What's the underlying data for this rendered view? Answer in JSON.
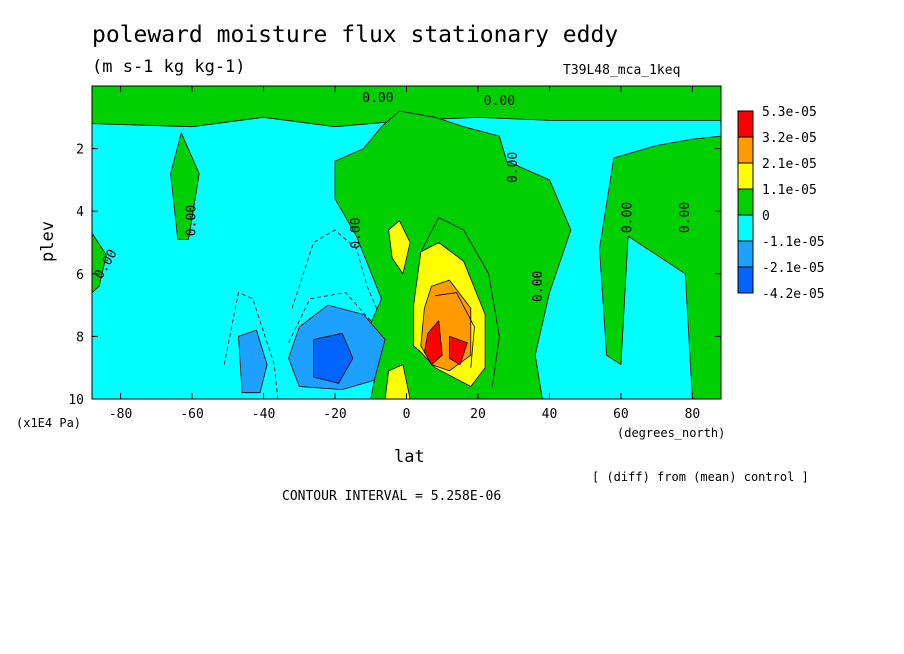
{
  "chart_data": {
    "type": "contour",
    "title": "poleward moisture flux stationary eddy",
    "units": "(m s-1 kg kg-1)",
    "run_label": "T39L48_mca_1keq",
    "comparison_note": "[ (diff) from (mean) control ]",
    "contour_interval_text": "CONTOUR INTERVAL = 5.258E-06",
    "xlabel": "lat",
    "xunit": "(degrees_north)",
    "ylabel": "plev",
    "yunit": "(x1E4 Pa)",
    "xlim": [
      -88,
      88
    ],
    "ylim": [
      10,
      0
    ],
    "xticks": [
      -80,
      -60,
      -40,
      -20,
      0,
      20,
      40,
      60,
      80
    ],
    "yticks": [
      2,
      4,
      6,
      8,
      10
    ],
    "contour_label": "0.00",
    "legend": {
      "placement": "right",
      "levels": [
        "5.3e-05",
        "3.2e-05",
        "2.1e-05",
        "1.1e-05",
        "0",
        "-1.1e-05",
        "-2.1e-05",
        "-4.2e-05"
      ],
      "colors": [
        "#ff0000",
        "#ff9b00",
        "#ffff00",
        "#00d000",
        "#00ffff",
        "#1ea0ff",
        "#0064ff"
      ]
    },
    "background_color": "#00ffff",
    "regions": [
      {
        "name": "positive-band-top",
        "level": "0-1.1e-05",
        "color": "#00d000",
        "pts": [
          [
            -88,
            0
          ],
          [
            88,
            0
          ],
          [
            88,
            1.1
          ],
          [
            60,
            1.1
          ],
          [
            40,
            1.1
          ],
          [
            20,
            1.0
          ],
          [
            0,
            1.1
          ],
          [
            -20,
            1.3
          ],
          [
            -40,
            1.0
          ],
          [
            -60,
            1.3
          ],
          [
            -88,
            1.2
          ]
        ]
      },
      {
        "name": "positive-core-column",
        "level": "0-1.1e-05",
        "color": "#00d000",
        "pts": [
          [
            -2,
            0.8
          ],
          [
            8,
            1.0
          ],
          [
            16,
            1.3
          ],
          [
            26,
            1.6
          ],
          [
            28,
            2.4
          ],
          [
            40,
            3.0
          ],
          [
            46,
            4.6
          ],
          [
            40,
            6.6
          ],
          [
            36,
            8.6
          ],
          [
            38,
            10
          ],
          [
            -10,
            10
          ],
          [
            -8,
            8.8
          ],
          [
            -12,
            8.1
          ],
          [
            -7,
            6.8
          ],
          [
            -14,
            4.8
          ],
          [
            -20,
            3.6
          ],
          [
            -20,
            2.4
          ],
          [
            -12,
            2.0
          ],
          [
            -7,
            1.3
          ]
        ]
      },
      {
        "name": "positive-column-east",
        "level": "0-1.1e-05",
        "color": "#00d000",
        "pts": [
          [
            58,
            2.3
          ],
          [
            70,
            1.9
          ],
          [
            80,
            1.7
          ],
          [
            88,
            1.6
          ],
          [
            88,
            10
          ],
          [
            80,
            10
          ],
          [
            78,
            6.0
          ],
          [
            62,
            4.8
          ],
          [
            60,
            8.9
          ],
          [
            56,
            8.6
          ],
          [
            54,
            5.2
          ]
        ]
      },
      {
        "name": "positive-strip-west",
        "level": "0-1.1e-05",
        "color": "#00d000",
        "pts": [
          [
            -66,
            2.8
          ],
          [
            -63,
            1.5
          ],
          [
            -58,
            2.8
          ],
          [
            -61,
            4.9
          ],
          [
            -64,
            4.9
          ]
        ]
      },
      {
        "name": "positive-edge-west",
        "level": "0-1.1e-05",
        "color": "#00d000",
        "pts": [
          [
            -88,
            4.7
          ],
          [
            -84,
            5.4
          ],
          [
            -86,
            6.4
          ],
          [
            -88,
            6.6
          ]
        ]
      },
      {
        "name": "negative-patch-south",
        "level": "-1.1e-05--2.1e-05",
        "color": "#1ea0ff",
        "pts": [
          [
            -30,
            7.7
          ],
          [
            -22,
            7.0
          ],
          [
            -12,
            7.3
          ],
          [
            -6,
            8.1
          ],
          [
            -9,
            9.4
          ],
          [
            -18,
            9.7
          ],
          [
            -30,
            9.6
          ],
          [
            -33,
            8.7
          ]
        ]
      },
      {
        "name": "negative-patch-west",
        "level": "-1.1e-05--2.1e-05",
        "color": "#1ea0ff",
        "pts": [
          [
            -47,
            8.0
          ],
          [
            -42,
            7.8
          ],
          [
            -39,
            8.9
          ],
          [
            -41,
            9.8
          ],
          [
            -46,
            9.8
          ]
        ]
      },
      {
        "name": "negative-core-south",
        "level": "-2.1e-05--4.2e-05",
        "color": "#0064ff",
        "pts": [
          [
            -26,
            8.1
          ],
          [
            -18,
            7.9
          ],
          [
            -15,
            8.7
          ],
          [
            -19,
            9.5
          ],
          [
            -26,
            9.3
          ]
        ]
      },
      {
        "name": "positive-tongue-equator",
        "level": "1.1e-05-2.1e-05",
        "color": "#ffff00",
        "pts": [
          [
            4,
            5.3
          ],
          [
            9,
            5.0
          ],
          [
            16,
            5.6
          ],
          [
            22,
            7.3
          ],
          [
            22,
            9.0
          ],
          [
            18,
            9.6
          ],
          [
            8,
            9.0
          ],
          [
            4,
            8.5
          ],
          [
            2,
            8.3
          ],
          [
            2,
            7.0
          ]
        ]
      },
      {
        "name": "positive-upper-lobe",
        "level": "1.1e-05-2.1e-05",
        "color": "#ffff00",
        "pts": [
          [
            -5,
            4.6
          ],
          [
            -2,
            4.3
          ],
          [
            1,
            5.0
          ],
          [
            -1,
            6.0
          ],
          [
            -4,
            5.5
          ]
        ]
      },
      {
        "name": "positive-lower-lobe",
        "level": "1.1e-05-2.1e-05",
        "color": "#ffff00",
        "pts": [
          [
            -5,
            9.1
          ],
          [
            -1,
            8.9
          ],
          [
            1,
            10
          ],
          [
            -6,
            10
          ]
        ]
      },
      {
        "name": "positive-strong",
        "level": "2.1e-05-3.2e-05",
        "color": "#ff9b00",
        "pts": [
          [
            7,
            6.4
          ],
          [
            12,
            6.2
          ],
          [
            18,
            7.1
          ],
          [
            18,
            8.6
          ],
          [
            12,
            9.1
          ],
          [
            7,
            8.9
          ],
          [
            4,
            8.3
          ],
          [
            5,
            7.1
          ]
        ]
      },
      {
        "name": "positive-max-west",
        "level": "3.2e-05-5.3e-05",
        "color": "#ff0000",
        "pts": [
          [
            6,
            7.9
          ],
          [
            9,
            7.5
          ],
          [
            10,
            8.6
          ],
          [
            7,
            8.9
          ],
          [
            5,
            8.5
          ]
        ]
      },
      {
        "name": "positive-max-east",
        "level": "3.2e-05-5.3e-05",
        "color": "#ff0000",
        "pts": [
          [
            12,
            8.0
          ],
          [
            17,
            8.2
          ],
          [
            15,
            8.9
          ],
          [
            12,
            8.7
          ]
        ]
      }
    ],
    "contour_lines": [
      {
        "style": "dashed",
        "pts": [
          [
            -51,
            8.9
          ],
          [
            -47,
            6.6
          ],
          [
            -43,
            6.8
          ],
          [
            -37,
            8.9
          ],
          [
            -36,
            10
          ]
        ]
      },
      {
        "style": "dashed",
        "pts": [
          [
            -32,
            7.1
          ],
          [
            -26,
            5.0
          ],
          [
            -20,
            4.6
          ],
          [
            -14,
            5.2
          ],
          [
            -11,
            6.4
          ],
          [
            -8,
            7.2
          ]
        ]
      },
      {
        "style": "dashed",
        "pts": [
          [
            -33,
            8.2
          ],
          [
            -27,
            6.8
          ],
          [
            -17,
            6.6
          ],
          [
            -10,
            7.5
          ]
        ]
      },
      {
        "style": "solid",
        "pts": [
          [
            4,
            5.3
          ],
          [
            9,
            4.2
          ],
          [
            16,
            4.6
          ],
          [
            23,
            6.0
          ],
          [
            26,
            8.0
          ],
          [
            24,
            9.6
          ]
        ]
      },
      {
        "style": "solid",
        "pts": [
          [
            8,
            6.7
          ],
          [
            14,
            6.6
          ],
          [
            19,
            7.7
          ],
          [
            18,
            9.0
          ]
        ]
      }
    ],
    "label_positions": [
      {
        "x": -8,
        "y": 0.4,
        "rot": 0
      },
      {
        "x": 26,
        "y": 0.5,
        "rot": 0
      },
      {
        "x": 30,
        "y": 2.6,
        "rot": -90
      },
      {
        "x": -60,
        "y": 4.3,
        "rot": -90
      },
      {
        "x": -84,
        "y": 5.7,
        "rot": -60
      },
      {
        "x": -14,
        "y": 4.7,
        "rot": -90
      },
      {
        "x": 37,
        "y": 6.4,
        "rot": -90
      },
      {
        "x": 62,
        "y": 4.2,
        "rot": -90
      },
      {
        "x": 78,
        "y": 4.2,
        "rot": -90
      }
    ]
  }
}
